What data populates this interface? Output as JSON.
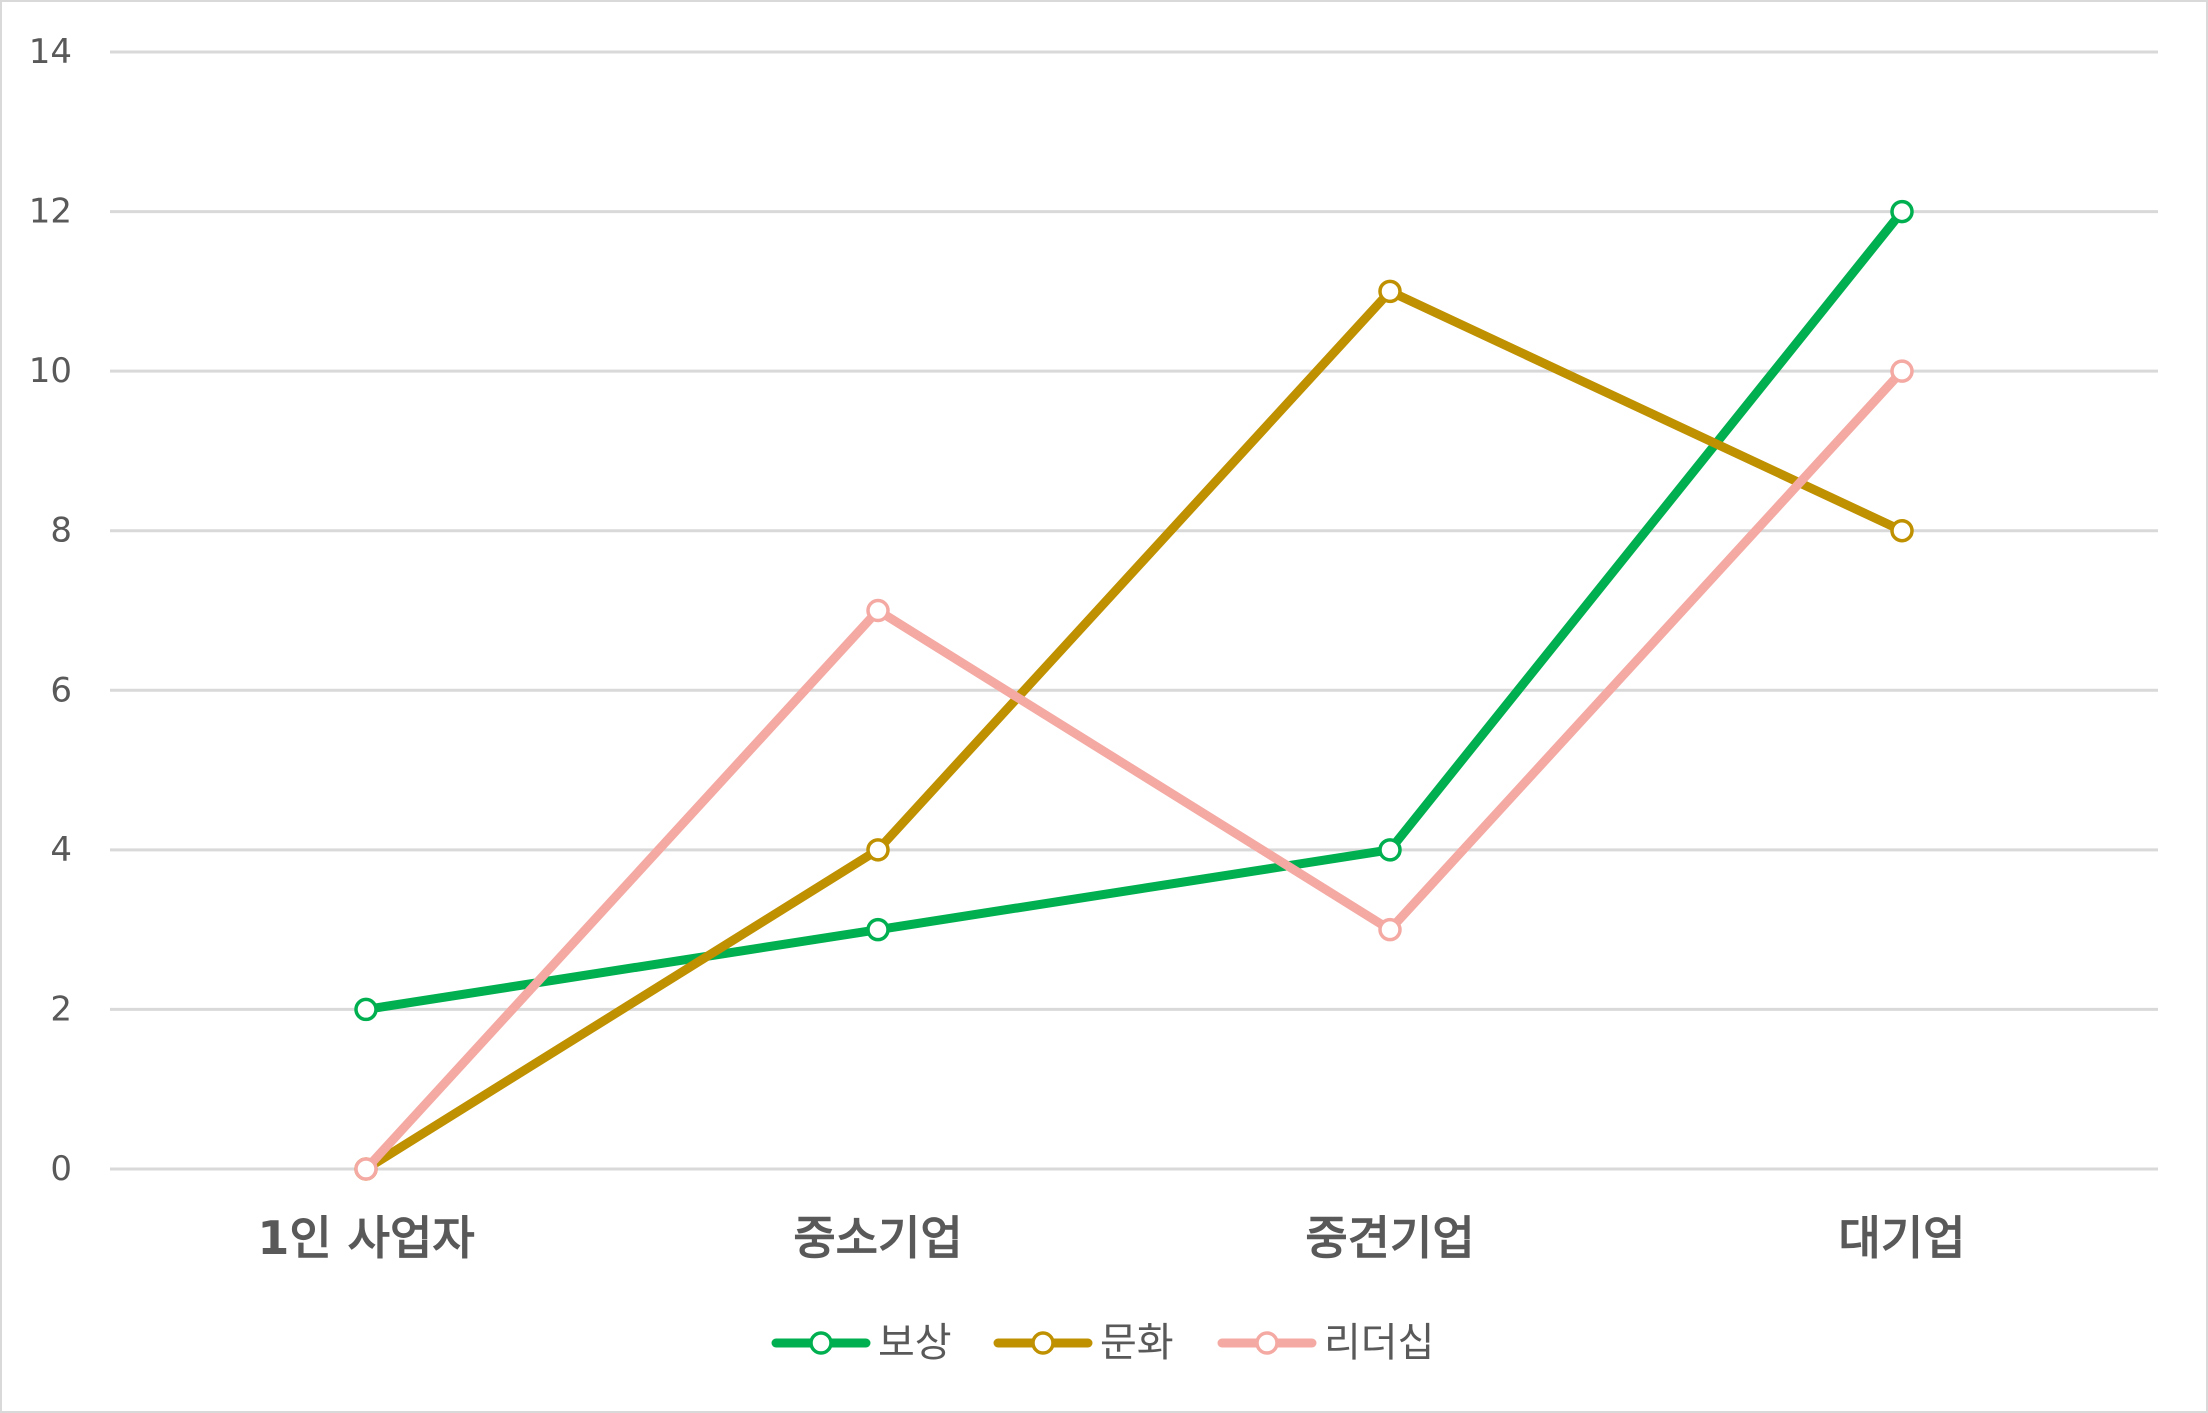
{
  "chart_data": {
    "type": "line",
    "categories": [
      "1인 사업자",
      "중소기업",
      "중견기업",
      "대기업"
    ],
    "series": [
      {
        "name": "보상",
        "values": [
          2,
          3,
          4,
          12
        ],
        "color": "#00b050"
      },
      {
        "name": "문화",
        "values": [
          0,
          4,
          11,
          8
        ],
        "color": "#bf9000"
      },
      {
        "name": "리더십",
        "values": [
          0,
          7,
          3,
          10
        ],
        "color": "#f4a9a3"
      }
    ],
    "ylim": [
      0,
      14
    ],
    "yticks": [
      0,
      2,
      4,
      6,
      8,
      10,
      12,
      14
    ],
    "grid": true,
    "legend_position": "bottom",
    "marker": "hollow-circle"
  }
}
